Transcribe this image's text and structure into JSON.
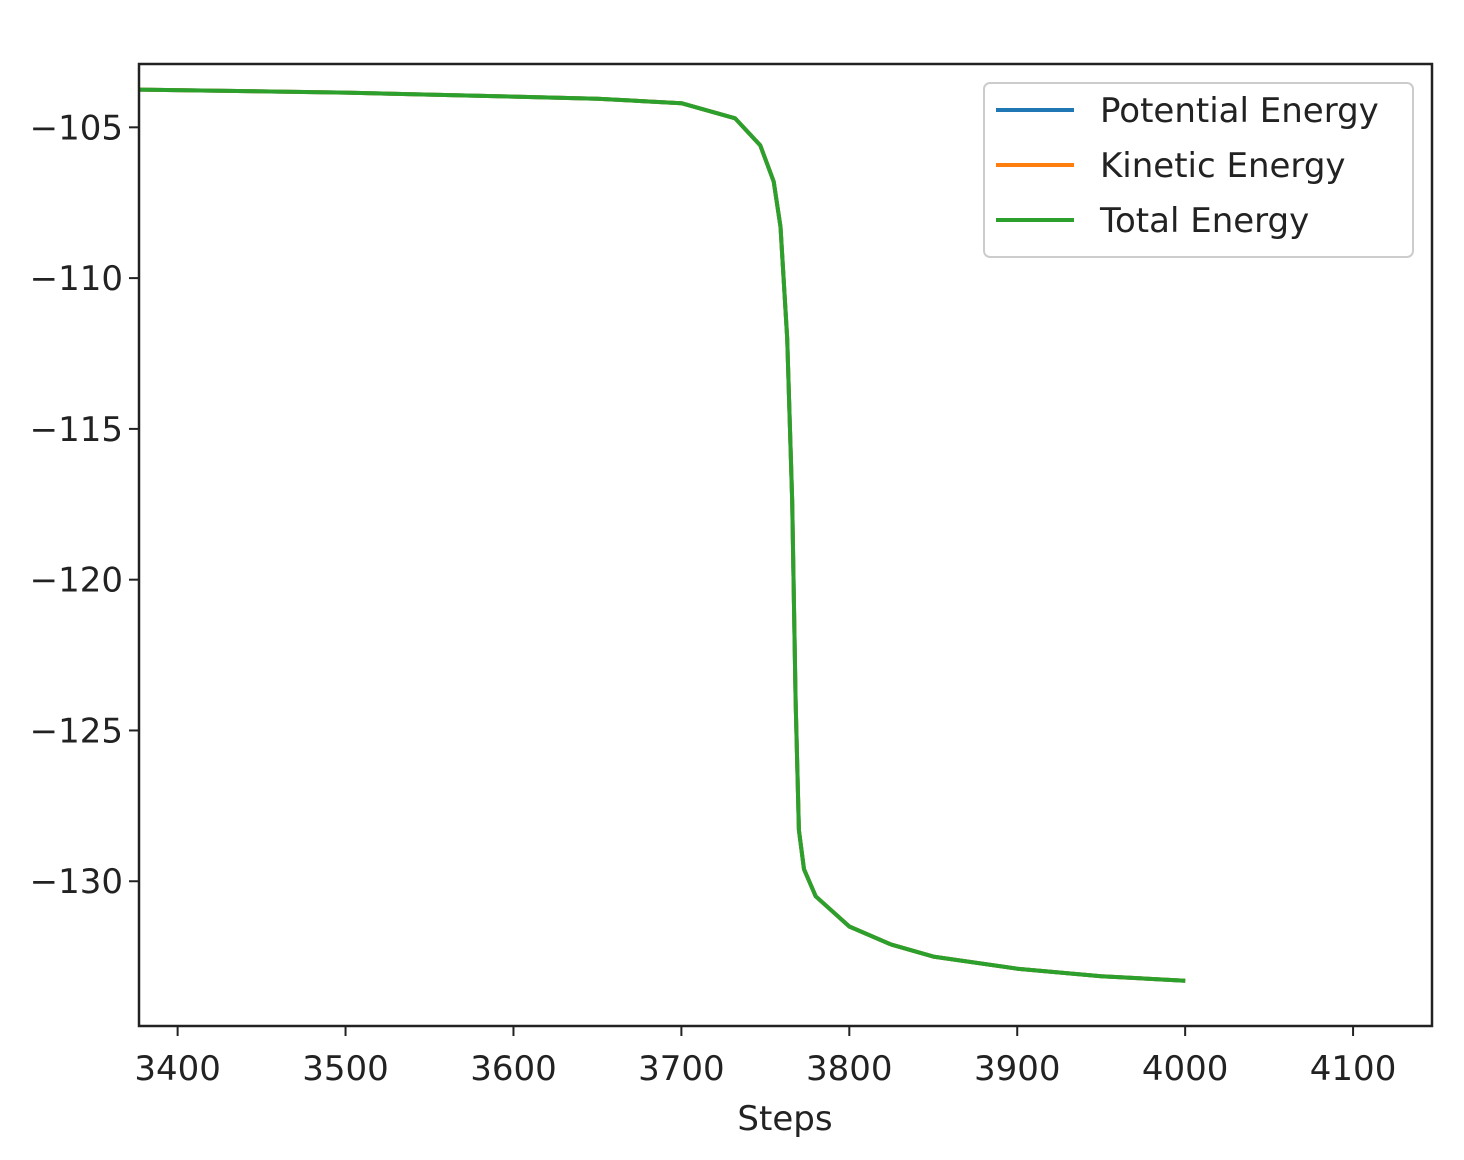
{
  "chart_data": {
    "type": "line",
    "title": "",
    "xlabel": "Steps",
    "ylabel": "",
    "xlim": [
      3377,
      4147
    ],
    "ylim": [
      -134.8,
      -102.9
    ],
    "xticks": [
      3400,
      3500,
      3600,
      3700,
      3800,
      3900,
      4000,
      4100
    ],
    "yticks": [
      -105,
      -110,
      -115,
      -120,
      -125,
      -130
    ],
    "xtick_labels": [
      "3400",
      "3500",
      "3600",
      "3700",
      "3800",
      "3900",
      "4000",
      "4100"
    ],
    "ytick_labels": [
      "−105",
      "−110",
      "−115",
      "−120",
      "−125",
      "−130"
    ],
    "grid": false,
    "legend_placement": "top-right",
    "x": [
      3377,
      3500,
      3600,
      3650,
      3700,
      3732,
      3747,
      3755,
      3759,
      3763,
      3766,
      3768,
      3770,
      3773,
      3780,
      3800,
      3825,
      3850,
      3900,
      3950,
      4000
    ],
    "series": [
      {
        "name": "Potential Energy",
        "color": "#1f77b4",
        "values": [
          -103.75,
          -103.85,
          -103.98,
          -104.05,
          -104.2,
          -104.7,
          -105.6,
          -106.8,
          -108.3,
          -112.0,
          -117.4,
          -124.0,
          -128.3,
          -129.6,
          -130.5,
          -131.5,
          -132.1,
          -132.5,
          -132.9,
          -133.15,
          -133.3
        ]
      },
      {
        "name": "Kinetic Energy",
        "color": "#ff7f0e",
        "values": [
          -103.75,
          -103.85,
          -103.98,
          -104.05,
          -104.2,
          -104.7,
          -105.6,
          -106.8,
          -108.3,
          -112.0,
          -117.4,
          -124.0,
          -128.3,
          -129.6,
          -130.5,
          -131.5,
          -132.1,
          -132.5,
          -132.9,
          -133.15,
          -133.3
        ]
      },
      {
        "name": "Total Energy",
        "color": "#2ca02c",
        "values": [
          -103.75,
          -103.85,
          -103.98,
          -104.05,
          -104.2,
          -104.7,
          -105.6,
          -106.8,
          -108.3,
          -112.0,
          -117.4,
          -124.0,
          -128.3,
          -129.6,
          -130.5,
          -131.5,
          -132.1,
          -132.5,
          -132.9,
          -133.15,
          -133.3
        ]
      }
    ]
  }
}
